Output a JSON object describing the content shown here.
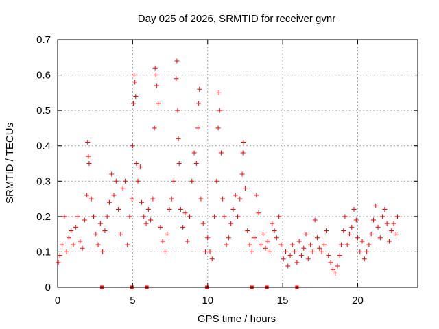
{
  "chart_data": {
    "type": "scatter",
    "title": "Day 025 of 2026, SRMTID for receiver gvnr",
    "xlabel": "GPS time / hours",
    "ylabel": "SRMTID / TECUs",
    "xlim": [
      0,
      24
    ],
    "ylim": [
      0,
      0.7
    ],
    "xticks": [
      0,
      5,
      10,
      15,
      20
    ],
    "yticks": [
      0,
      0.1,
      0.2,
      0.3,
      0.4,
      0.5,
      0.6,
      0.7
    ],
    "grid": true,
    "marker": "+",
    "color": "#ff0000",
    "series": [
      {
        "name": "SRMTID",
        "points": [
          [
            0.05,
            0.07
          ],
          [
            0.15,
            0.09
          ],
          [
            0.3,
            0.12
          ],
          [
            0.45,
            0.2
          ],
          [
            0.6,
            0.1
          ],
          [
            0.75,
            0.14
          ],
          [
            0.9,
            0.16
          ],
          [
            1.05,
            0.12
          ],
          [
            1.2,
            0.17
          ],
          [
            1.35,
            0.2
          ],
          [
            1.5,
            0.13
          ],
          [
            1.65,
            0.11
          ],
          [
            1.8,
            0.19
          ],
          [
            1.95,
            0.26
          ],
          [
            2.0,
            0.41
          ],
          [
            2.05,
            0.37
          ],
          [
            2.1,
            0.35
          ],
          [
            2.25,
            0.25
          ],
          [
            2.4,
            0.2
          ],
          [
            2.55,
            0.15
          ],
          [
            2.7,
            0.12
          ],
          [
            2.85,
            0.18
          ],
          [
            3.0,
            0.1
          ],
          [
            3.15,
            0.16
          ],
          [
            3.3,
            0.2
          ],
          [
            3.45,
            0.24
          ],
          [
            3.6,
            0.32
          ],
          [
            3.75,
            0.26
          ],
          [
            3.9,
            0.3
          ],
          [
            4.05,
            0.22
          ],
          [
            4.2,
            0.15
          ],
          [
            4.35,
            0.28
          ],
          [
            4.5,
            0.3
          ],
          [
            4.65,
            0.12
          ],
          [
            4.8,
            0.2
          ],
          [
            4.95,
            0.25
          ],
          [
            5.0,
            0.4
          ],
          [
            5.05,
            0.52
          ],
          [
            5.1,
            0.6
          ],
          [
            5.15,
            0.58
          ],
          [
            5.2,
            0.54
          ],
          [
            5.25,
            0.35
          ],
          [
            5.35,
            0.3
          ],
          [
            5.5,
            0.34
          ],
          [
            5.6,
            0.24
          ],
          [
            5.75,
            0.2
          ],
          [
            5.9,
            0.18
          ],
          [
            6.05,
            0.22
          ],
          [
            6.2,
            0.19
          ],
          [
            6.35,
            0.25
          ],
          [
            6.45,
            0.45
          ],
          [
            6.5,
            0.62
          ],
          [
            6.55,
            0.6
          ],
          [
            6.6,
            0.57
          ],
          [
            6.7,
            0.52
          ],
          [
            6.85,
            0.17
          ],
          [
            7.0,
            0.13
          ],
          [
            7.15,
            0.1
          ],
          [
            7.3,
            0.15
          ],
          [
            7.45,
            0.22
          ],
          [
            7.6,
            0.25
          ],
          [
            7.75,
            0.3
          ],
          [
            7.9,
            0.59
          ],
          [
            7.95,
            0.64
          ],
          [
            8.0,
            0.5
          ],
          [
            8.05,
            0.42
          ],
          [
            8.1,
            0.35
          ],
          [
            8.2,
            0.22
          ],
          [
            8.35,
            0.17
          ],
          [
            8.5,
            0.21
          ],
          [
            8.65,
            0.13
          ],
          [
            8.8,
            0.2
          ],
          [
            8.95,
            0.3
          ],
          [
            9.1,
            0.38
          ],
          [
            9.25,
            0.35
          ],
          [
            9.35,
            0.45
          ],
          [
            9.4,
            0.52
          ],
          [
            9.45,
            0.56
          ],
          [
            9.55,
            0.25
          ],
          [
            9.7,
            0.18
          ],
          [
            9.85,
            0.1
          ],
          [
            10.0,
            0.14
          ],
          [
            10.15,
            0.1
          ],
          [
            10.3,
            0.08
          ],
          [
            10.45,
            0.2
          ],
          [
            10.6,
            0.3
          ],
          [
            10.7,
            0.45
          ],
          [
            10.75,
            0.55
          ],
          [
            10.8,
            0.5
          ],
          [
            10.9,
            0.38
          ],
          [
            11.0,
            0.25
          ],
          [
            11.1,
            0.2
          ],
          [
            11.25,
            0.12
          ],
          [
            11.4,
            0.14
          ],
          [
            11.55,
            0.18
          ],
          [
            11.7,
            0.22
          ],
          [
            11.85,
            0.26
          ],
          [
            12.0,
            0.2
          ],
          [
            12.15,
            0.25
          ],
          [
            12.3,
            0.32
          ],
          [
            12.35,
            0.38
          ],
          [
            12.4,
            0.41
          ],
          [
            12.5,
            0.28
          ],
          [
            12.65,
            0.16
          ],
          [
            12.8,
            0.12
          ],
          [
            12.95,
            0.1
          ],
          [
            13.1,
            0.14
          ],
          [
            13.25,
            0.26
          ],
          [
            13.4,
            0.21
          ],
          [
            13.55,
            0.12
          ],
          [
            13.7,
            0.15
          ],
          [
            13.85,
            0.11
          ],
          [
            14.0,
            0.13
          ],
          [
            14.15,
            0.1
          ],
          [
            14.3,
            0.18
          ],
          [
            14.45,
            0.16
          ],
          [
            14.6,
            0.14
          ],
          [
            14.75,
            0.2
          ],
          [
            14.9,
            0.12
          ],
          [
            15.05,
            0.08
          ],
          [
            15.2,
            0.1
          ],
          [
            15.35,
            0.06
          ],
          [
            15.5,
            0.09
          ],
          [
            15.65,
            0.12
          ],
          [
            15.8,
            0.1
          ],
          [
            15.95,
            0.07
          ],
          [
            16.1,
            0.13
          ],
          [
            16.25,
            0.09
          ],
          [
            16.4,
            0.11
          ],
          [
            16.55,
            0.15
          ],
          [
            16.7,
            0.08
          ],
          [
            16.85,
            0.12
          ],
          [
            17.0,
            0.1
          ],
          [
            17.15,
            0.19
          ],
          [
            17.3,
            0.14
          ],
          [
            17.45,
            0.11
          ],
          [
            17.6,
            0.1
          ],
          [
            17.75,
            0.12
          ],
          [
            17.9,
            0.16
          ],
          [
            18.05,
            0.09
          ],
          [
            18.2,
            0.07
          ],
          [
            18.35,
            0.05
          ],
          [
            18.5,
            0.04
          ],
          [
            18.65,
            0.06
          ],
          [
            18.8,
            0.09
          ],
          [
            18.9,
            0.12
          ],
          [
            19.05,
            0.16
          ],
          [
            19.15,
            0.2
          ],
          [
            19.3,
            0.12
          ],
          [
            19.45,
            0.15
          ],
          [
            19.6,
            0.17
          ],
          [
            19.75,
            0.22
          ],
          [
            19.9,
            0.19
          ],
          [
            20.0,
            0.14
          ],
          [
            20.15,
            0.1
          ],
          [
            20.3,
            0.13
          ],
          [
            20.45,
            0.08
          ],
          [
            20.6,
            0.1
          ],
          [
            20.75,
            0.12
          ],
          [
            20.9,
            0.15
          ],
          [
            21.05,
            0.19
          ],
          [
            21.2,
            0.23
          ],
          [
            21.35,
            0.17
          ],
          [
            21.5,
            0.14
          ],
          [
            21.65,
            0.2
          ],
          [
            21.8,
            0.22
          ],
          [
            21.95,
            0.18
          ],
          [
            22.1,
            0.13
          ],
          [
            22.25,
            0.16
          ],
          [
            22.4,
            0.18
          ],
          [
            22.55,
            0.15
          ],
          [
            22.65,
            0.2
          ]
        ]
      }
    ],
    "zero_markers_x": [
      2.95,
      4.95,
      5.95,
      9.95,
      12.95,
      13.95,
      15.95
    ]
  }
}
